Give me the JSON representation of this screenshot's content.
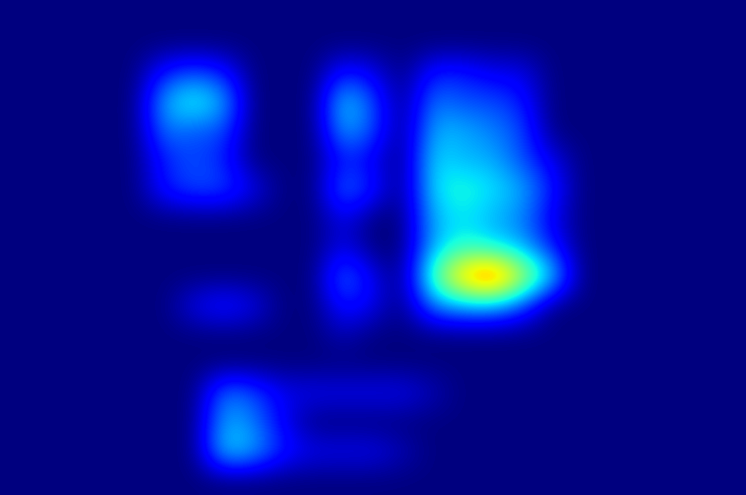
{
  "chart_data": {
    "type": "heatmap",
    "color": "jet",
    "color_range": [
      0,
      1
    ],
    "tick_labels": false,
    "cells": [
      [
        0,
        0,
        0,
        0,
        0,
        0,
        0,
        0,
        0,
        0,
        0,
        0,
        0,
        0,
        0,
        0,
        0,
        0,
        0,
        0,
        0,
        0,
        0,
        0,
        0
      ],
      [
        0,
        0,
        0,
        0,
        0,
        0,
        0,
        0,
        0,
        0,
        0,
        0,
        0,
        0,
        0,
        0,
        0,
        0,
        0,
        0,
        0,
        0,
        0,
        0,
        0
      ],
      [
        0,
        0,
        0,
        0,
        0,
        0.15,
        0.2,
        0.15,
        0,
        0,
        0,
        0.15,
        0.1,
        0,
        0.15,
        0.15,
        0.1,
        0.1,
        0,
        0,
        0,
        0,
        0,
        0,
        0
      ],
      [
        0,
        0,
        0,
        0,
        0,
        0.3,
        0.4,
        0.3,
        0,
        0,
        0,
        0.35,
        0.2,
        0,
        0.25,
        0.2,
        0.2,
        0.15,
        0,
        0,
        0,
        0,
        0,
        0,
        0
      ],
      [
        0,
        0,
        0,
        0,
        0,
        0.25,
        0.2,
        0.2,
        0,
        0,
        0,
        0.3,
        0.2,
        0,
        0.3,
        0.3,
        0.25,
        0.2,
        0,
        0,
        0,
        0,
        0,
        0,
        0
      ],
      [
        0,
        0,
        0,
        0,
        0,
        0.15,
        0.2,
        0.15,
        0,
        0,
        0,
        0.15,
        0.1,
        0,
        0.35,
        0.3,
        0.3,
        0.2,
        0.1,
        0,
        0,
        0,
        0,
        0,
        0
      ],
      [
        0,
        0,
        0,
        0,
        0,
        0.15,
        0.2,
        0.2,
        0.1,
        0,
        0,
        0.25,
        0.15,
        0,
        0.35,
        0.4,
        0.35,
        0.3,
        0.15,
        0,
        0,
        0,
        0,
        0,
        0
      ],
      [
        0,
        0,
        0,
        0,
        0,
        0,
        0,
        0,
        0,
        0,
        0,
        0.1,
        0,
        0,
        0.3,
        0.35,
        0.3,
        0.25,
        0.1,
        0,
        0,
        0,
        0,
        0,
        0
      ],
      [
        0,
        0,
        0,
        0,
        0,
        0,
        0,
        0,
        0,
        0,
        0,
        0.1,
        0,
        0,
        0.3,
        0.4,
        0.35,
        0.3,
        0.15,
        0,
        0,
        0,
        0,
        0,
        0
      ],
      [
        0,
        0,
        0,
        0,
        0,
        0,
        0,
        0,
        0,
        0,
        0,
        0.25,
        0.1,
        0,
        0.45,
        0.75,
        0.9,
        0.6,
        0.35,
        0,
        0,
        0,
        0,
        0,
        0
      ],
      [
        0,
        0,
        0,
        0,
        0,
        0,
        0.1,
        0.15,
        0.1,
        0,
        0,
        0.15,
        0.1,
        0,
        0.25,
        0.3,
        0.3,
        0.2,
        0,
        0,
        0,
        0,
        0,
        0,
        0
      ],
      [
        0,
        0,
        0,
        0,
        0,
        0,
        0,
        0,
        0,
        0,
        0,
        0.05,
        0,
        0,
        0,
        0,
        0,
        0,
        0,
        0,
        0,
        0,
        0,
        0,
        0
      ],
      [
        0,
        0,
        0,
        0,
        0,
        0,
        0,
        0,
        0,
        0,
        0,
        0,
        0,
        0,
        0,
        0,
        0,
        0,
        0,
        0,
        0,
        0,
        0,
        0,
        0
      ],
      [
        0,
        0,
        0,
        0,
        0,
        0,
        0,
        0.25,
        0.2,
        0.1,
        0.1,
        0.1,
        0.1,
        0.1,
        0.05,
        0,
        0,
        0,
        0,
        0,
        0,
        0,
        0,
        0,
        0
      ],
      [
        0,
        0,
        0,
        0,
        0,
        0,
        0,
        0.3,
        0.25,
        0.1,
        0,
        0,
        0,
        0,
        0,
        0,
        0,
        0,
        0,
        0,
        0,
        0,
        0,
        0,
        0
      ],
      [
        0,
        0,
        0,
        0,
        0,
        0,
        0,
        0.35,
        0.3,
        0.15,
        0.1,
        0.1,
        0.1,
        0.05,
        0,
        0,
        0,
        0,
        0,
        0,
        0,
        0,
        0,
        0,
        0
      ],
      [
        0,
        0,
        0,
        0,
        0,
        0,
        0,
        0,
        0,
        0,
        0,
        0,
        0,
        0,
        0,
        0,
        0,
        0,
        0,
        0,
        0,
        0,
        0,
        0,
        0
      ]
    ]
  }
}
